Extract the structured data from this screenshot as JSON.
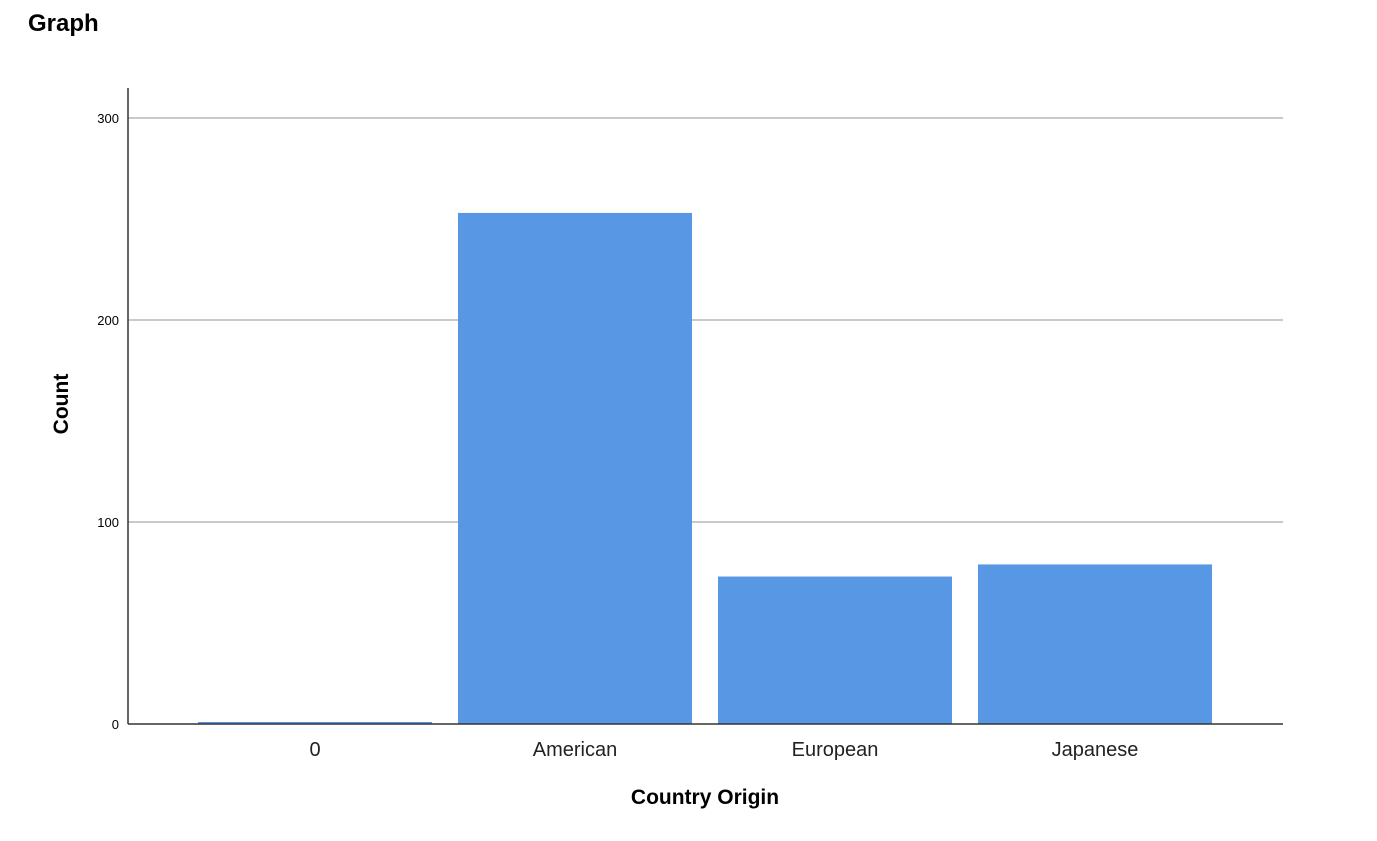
{
  "page": {
    "heading": "Graph"
  },
  "chart_data": {
    "type": "bar",
    "categories": [
      "0",
      "American",
      "European",
      "Japanese"
    ],
    "values": [
      1,
      253,
      73,
      79
    ],
    "xlabel": "Country Origin",
    "ylabel": "Count",
    "ylim": [
      0,
      300
    ],
    "yticks": [
      0,
      100,
      200,
      300
    ],
    "grid": true,
    "legend": "none",
    "colors": {
      "bar": "#5797e4",
      "grid": "#c9c9c9",
      "axis": "#333333"
    }
  }
}
